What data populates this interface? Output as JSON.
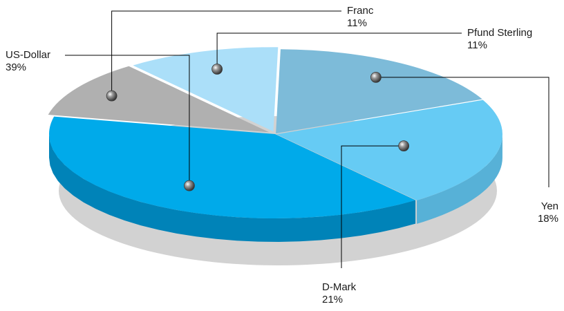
{
  "chart_data": {
    "type": "pie",
    "style": "3d-exploded-perspective",
    "title": "",
    "legend": "none",
    "slices": [
      {
        "label": "Franc",
        "value": 11,
        "value_label": "11%",
        "color": "#b0b0b0",
        "side": "#8f8f8f"
      },
      {
        "label": "Pfund Sterling",
        "value": 11,
        "value_label": "11%",
        "color": "#abdff9",
        "side": "#8fc3dc"
      },
      {
        "label": "Yen",
        "value": 18,
        "value_label": "18%",
        "color": "#7dbbd9",
        "side": "#6799b3"
      },
      {
        "label": "D-Mark",
        "value": 21,
        "value_label": "21%",
        "color": "#66cbf4",
        "side": "#57b1d7"
      },
      {
        "label": "US-Dollar",
        "value": 39,
        "value_label": "39%",
        "color": "#00aaea",
        "side": "#0083b8"
      }
    ],
    "colors": {
      "shadow": "#d2d2d2",
      "leader_line": "#000000",
      "marker": "#4a4a4a"
    }
  }
}
